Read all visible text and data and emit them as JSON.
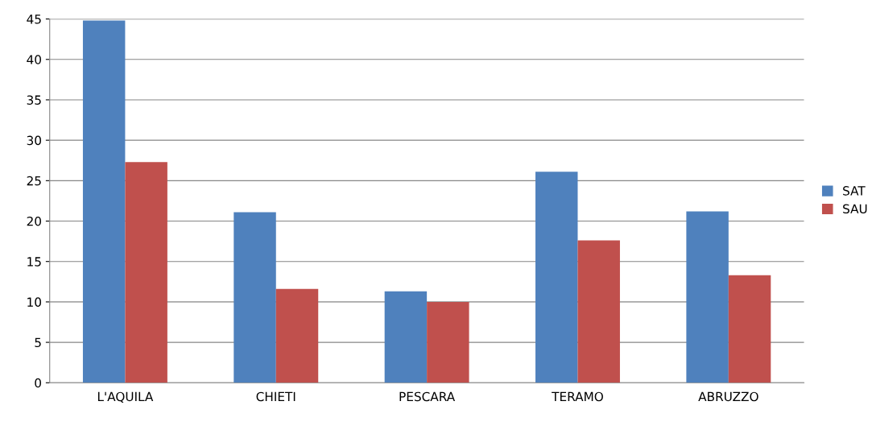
{
  "chart_data": {
    "type": "bar",
    "categories": [
      "L'AQUILA",
      "CHIETI",
      "PESCARA",
      "TERAMO",
      "ABRUZZO"
    ],
    "series": [
      {
        "name": "SAT",
        "color": "#4f81bd",
        "values": [
          44.8,
          21.1,
          11.3,
          26.1,
          21.2
        ]
      },
      {
        "name": "SAU",
        "color": "#c0504d",
        "values": [
          27.3,
          11.6,
          10.0,
          17.6,
          13.3
        ]
      }
    ],
    "ylim": [
      0,
      45
    ],
    "yticks": [
      0,
      5,
      10,
      15,
      20,
      25,
      30,
      35,
      40,
      45
    ],
    "grid": "y",
    "legend": "right"
  }
}
